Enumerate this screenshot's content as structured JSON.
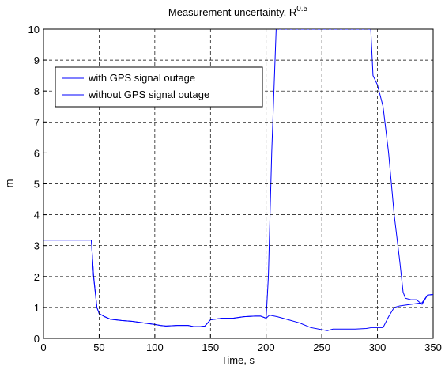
{
  "chart_data": {
    "type": "line",
    "title": {
      "text": "Measurement uncertainty, R",
      "superscript": "0.5"
    },
    "xlabel": "Time, s",
    "ylabel": "m",
    "xlim": [
      0,
      350
    ],
    "xticks": [
      0,
      50,
      100,
      150,
      200,
      250,
      300,
      350
    ],
    "ylim": [
      0,
      10
    ],
    "yticks": [
      0,
      1,
      2,
      3,
      4,
      5,
      6,
      7,
      8,
      9,
      10
    ],
    "grid": true,
    "legend": "upper left",
    "series": [
      {
        "name": "with GPS signal outage",
        "color": "#0000ff",
        "x": [
          0,
          43,
          45,
          48,
          50,
          55,
          60,
          70,
          80,
          90,
          100,
          105,
          110,
          120,
          130,
          135,
          140,
          145,
          150,
          160,
          170,
          180,
          190,
          195,
          200,
          202,
          205,
          209,
          294,
          296,
          300,
          305,
          310,
          315,
          320,
          323,
          325,
          330,
          335,
          340,
          345,
          350
        ],
        "values": [
          3.18,
          3.18,
          2.0,
          1.0,
          0.8,
          0.7,
          0.62,
          0.58,
          0.55,
          0.5,
          0.45,
          0.42,
          0.4,
          0.42,
          0.42,
          0.38,
          0.38,
          0.4,
          0.6,
          0.65,
          0.65,
          0.7,
          0.72,
          0.72,
          0.65,
          2.0,
          6.0,
          10,
          10,
          8.5,
          8.2,
          7.5,
          6.0,
          4.0,
          2.5,
          1.5,
          1.3,
          1.25,
          1.25,
          1.1,
          1.4,
          1.42
        ]
      },
      {
        "name": "without GPS signal outage",
        "color": "#0000ff",
        "x": [
          0,
          43,
          45,
          48,
          50,
          55,
          60,
          70,
          80,
          90,
          100,
          105,
          110,
          120,
          130,
          135,
          140,
          145,
          150,
          160,
          170,
          180,
          190,
          195,
          200,
          203,
          210,
          220,
          230,
          240,
          250,
          255,
          260,
          270,
          280,
          290,
          295,
          300,
          305,
          310,
          315,
          320,
          330,
          340,
          345,
          350
        ],
        "values": [
          3.18,
          3.18,
          2.0,
          1.0,
          0.8,
          0.7,
          0.62,
          0.58,
          0.55,
          0.5,
          0.45,
          0.42,
          0.4,
          0.42,
          0.42,
          0.38,
          0.38,
          0.4,
          0.6,
          0.65,
          0.65,
          0.7,
          0.72,
          0.72,
          0.65,
          0.75,
          0.7,
          0.6,
          0.5,
          0.35,
          0.28,
          0.25,
          0.3,
          0.3,
          0.3,
          0.32,
          0.35,
          0.35,
          0.35,
          0.7,
          1.0,
          1.05,
          1.1,
          1.15,
          1.4,
          1.42
        ]
      }
    ]
  }
}
